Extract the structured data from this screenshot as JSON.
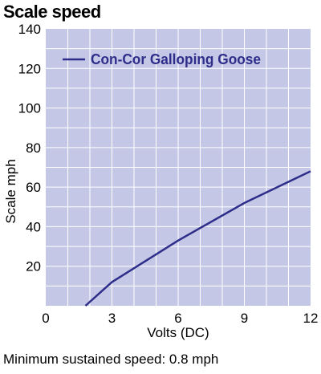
{
  "chart_data": {
    "type": "line",
    "title": "Scale speed",
    "xlabel": "Volts (DC)",
    "ylabel": "Scale mph",
    "xlim": [
      0,
      12
    ],
    "ylim": [
      0,
      140
    ],
    "x_ticks": [
      0,
      3,
      6,
      9,
      12
    ],
    "y_ticks": [
      20,
      40,
      60,
      80,
      100,
      120,
      140
    ],
    "grid": true,
    "legend_position": "top-left",
    "series": [
      {
        "name": "Con-Cor Galloping Goose",
        "color": "#2e2d8a",
        "x": [
          1.8,
          3,
          6,
          9,
          12
        ],
        "y": [
          0,
          12,
          33,
          52,
          68
        ]
      }
    ],
    "colors": {
      "plot_background": "#c4c8e6",
      "grid": "#ffffff",
      "legend_text": "#2e2d8a"
    }
  },
  "footnote": "Minimum sustained speed: 0.8 mph"
}
